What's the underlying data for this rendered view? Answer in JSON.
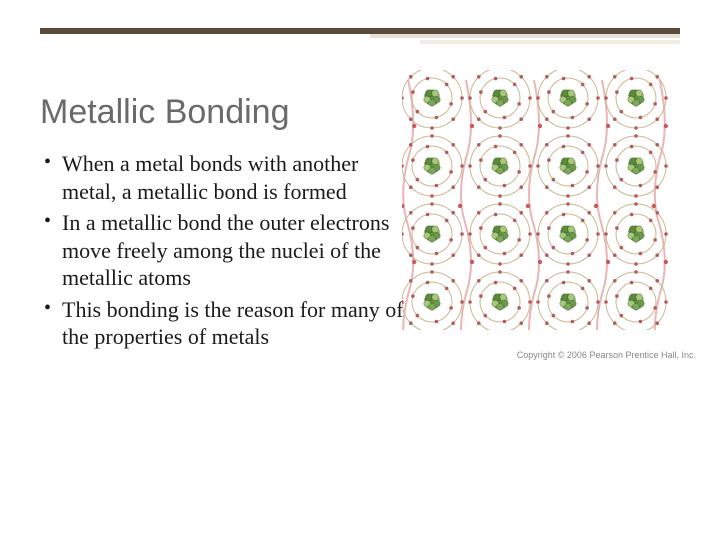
{
  "title": "Metallic Bonding",
  "bullets": [
    "When a metal bonds with another metal, a metallic bond is formed",
    "In a metallic bond the outer electrons move freely among the nuclei of the metallic atoms",
    "This bonding is the reason for many of the properties of metals"
  ],
  "figure": {
    "type": "diagram",
    "description": "4x4 grid of atoms with nuclei, electron shells, and free electrons flowing between atoms",
    "grid_rows": 4,
    "grid_cols": 4,
    "atom": {
      "shell_radii": [
        30,
        20
      ],
      "shell_stroke": "#c8b890",
      "shell_stroke_width": 1,
      "electrons_per_shell": [
        8,
        6
      ],
      "electron_radius": 1.8,
      "electron_fill": "#b85a5a",
      "nucleus_radius": 11,
      "nucleus_colors": [
        "#7aa85a",
        "#5a8a3a",
        "#a8c878",
        "#6a9a4a"
      ]
    },
    "free_electron": {
      "path_stroke": "#e8a8a8",
      "path_stroke_width": 2,
      "dot_fill": "#c85a5a",
      "dot_radius": 2.2
    },
    "background_color": "#ffffff",
    "cell_size": 68,
    "copyright": "Copyright © 2006 Pearson Prentice Hall, Inc."
  },
  "decor": {
    "rule_dark": "#5a4a3a",
    "rule_light": "#e8e0d6",
    "rule_light2": "#f0ece4"
  }
}
